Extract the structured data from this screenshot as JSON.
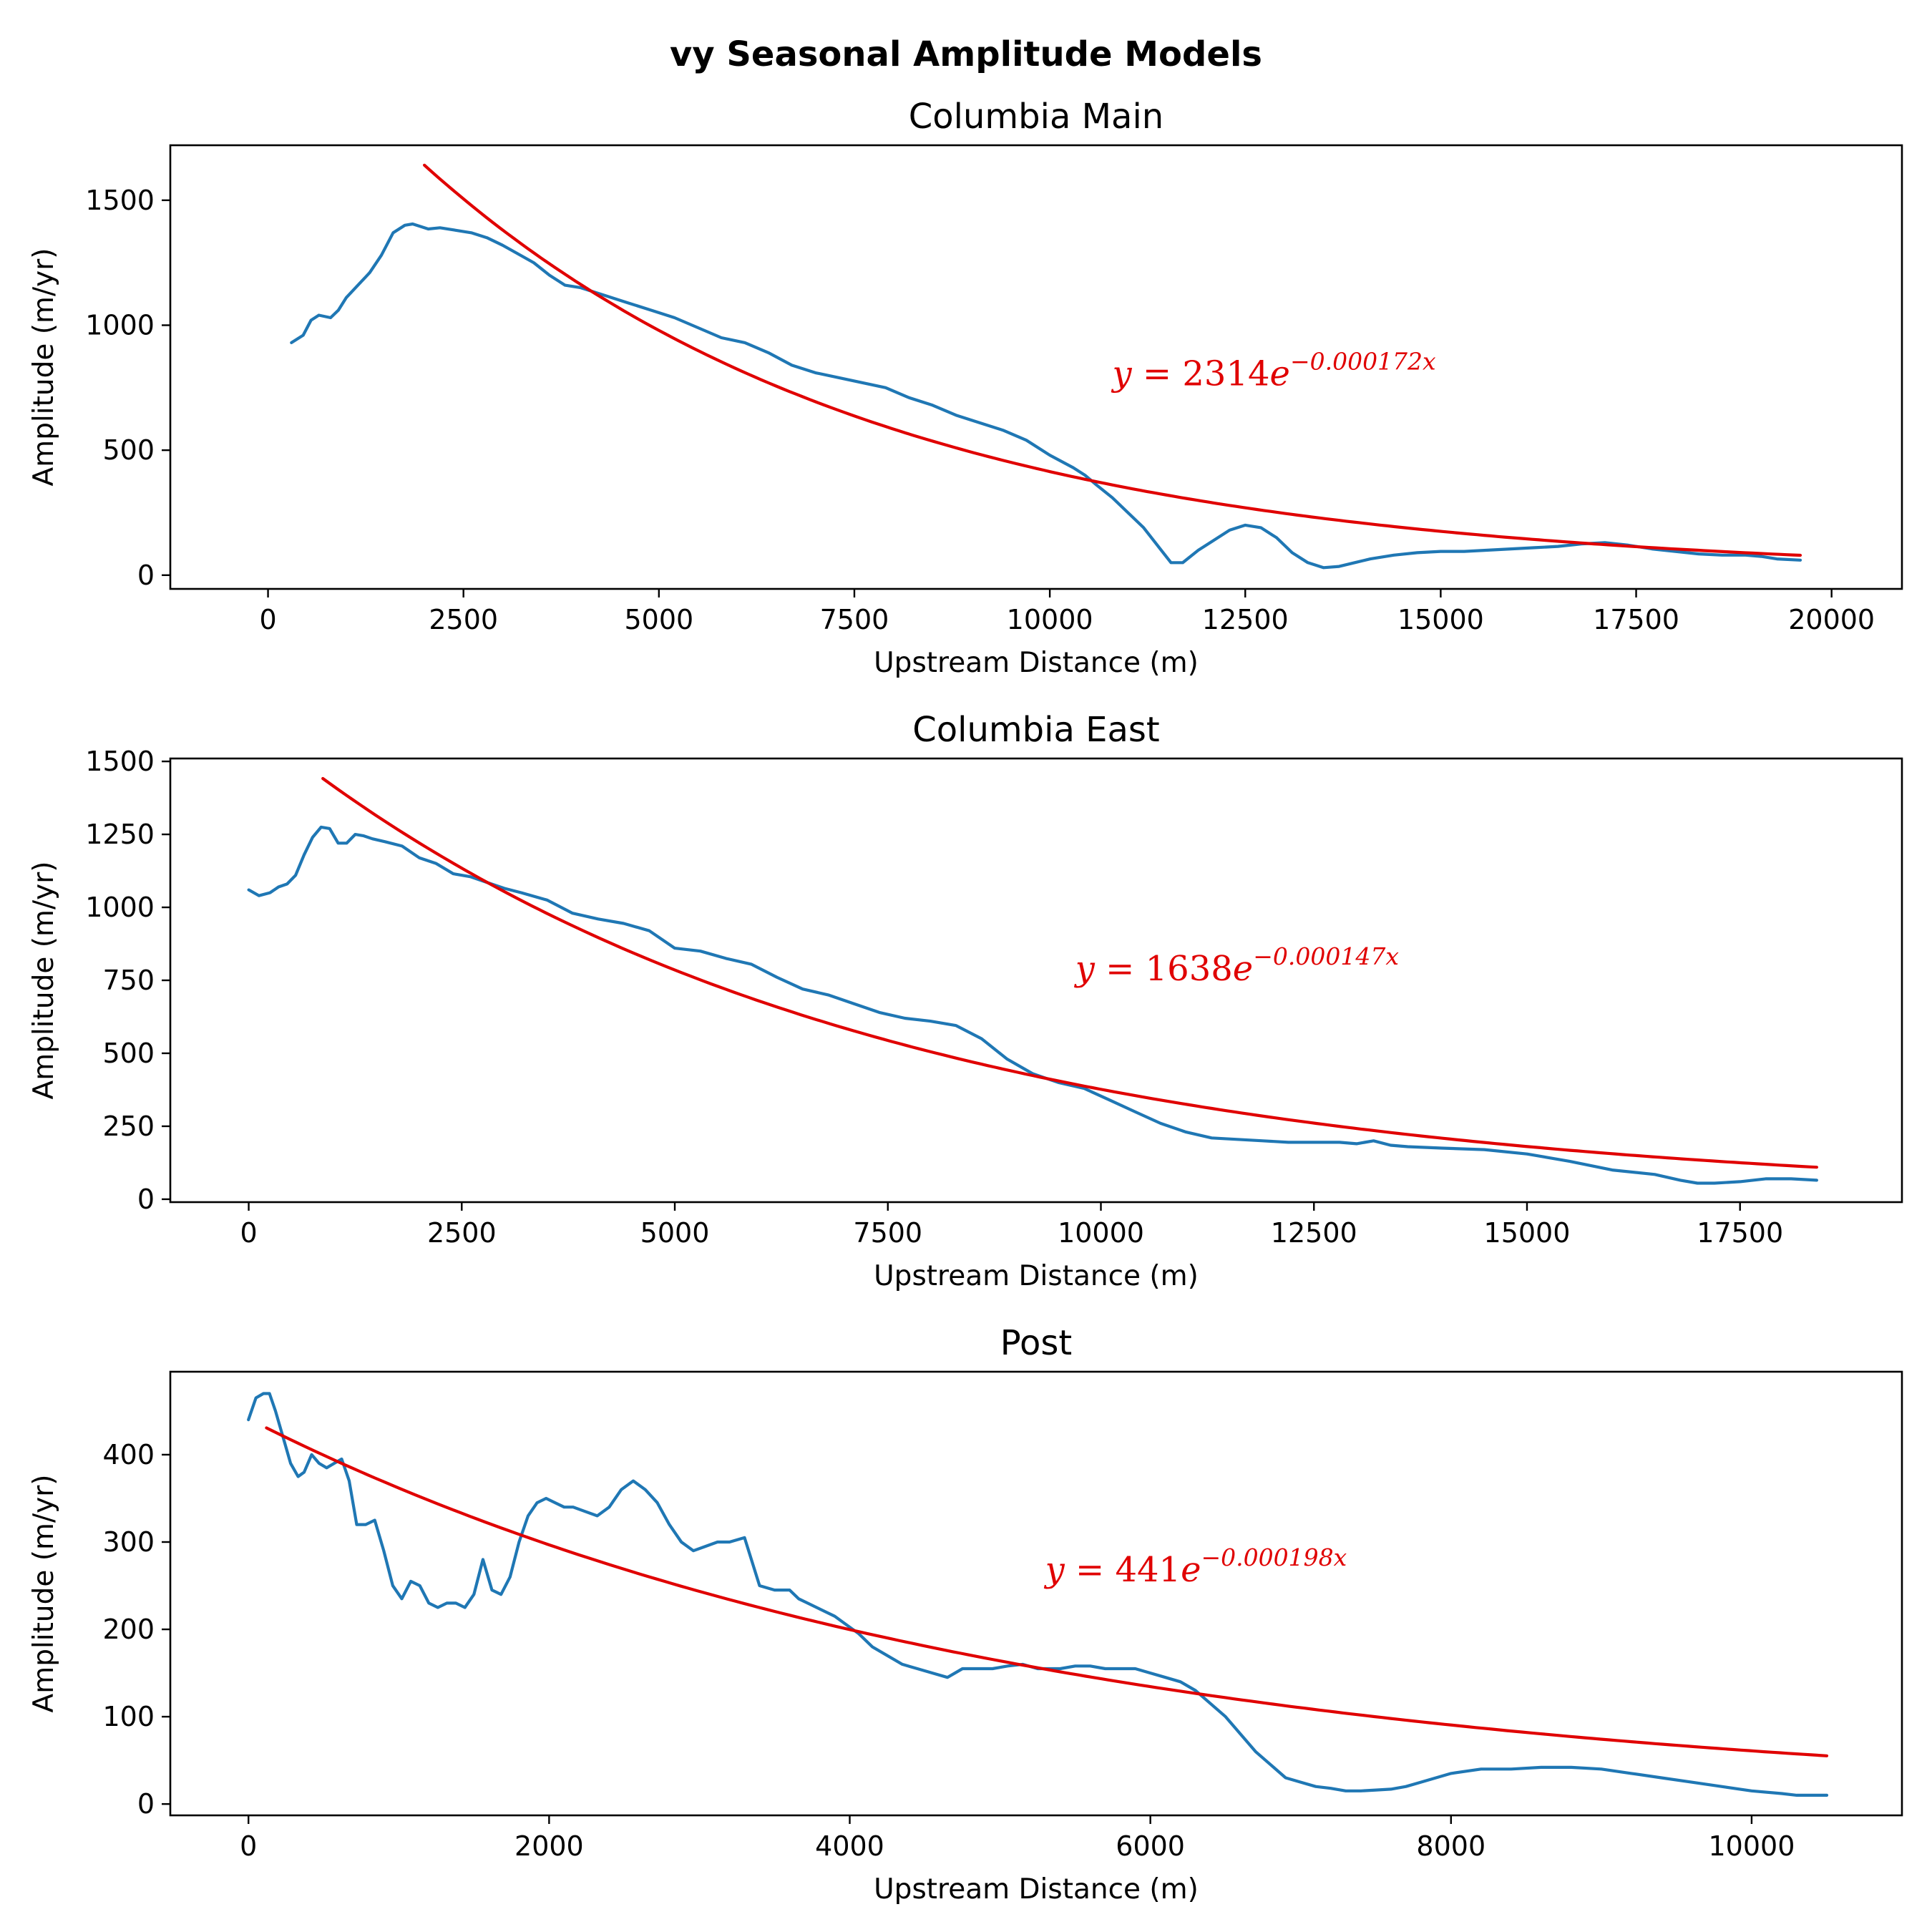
{
  "suptitle": "vy Seasonal Amplitude Models",
  "colors": {
    "observed": "#1f77b4",
    "fit": "#e00000"
  },
  "chart_data": [
    {
      "type": "line",
      "title": "Columbia Main",
      "xlabel": "Upstream Distance (m)",
      "ylabel": "Amplitude (m/yr)",
      "xlim": [
        -1250,
        20900
      ],
      "ylim": [
        -55,
        1720
      ],
      "xticks": [
        0,
        2500,
        5000,
        7500,
        10000,
        12500,
        15000,
        17500,
        20000
      ],
      "xtick_labels": [
        "0",
        "2500",
        "5000",
        "7500",
        "10000",
        "12500",
        "15000",
        "17500",
        "20000"
      ],
      "yticks": [
        0,
        500,
        1000,
        1500
      ],
      "ytick_labels": [
        "0",
        "500",
        "1000",
        "1500"
      ],
      "grid": false,
      "model": {
        "a": 2314,
        "b": 0.000172,
        "x_start": 2000,
        "x_end": 19600
      },
      "equation": {
        "lhs": "y = ",
        "coef": "2314",
        "base": "e",
        "exponent": "−0.000172x",
        "x": 10800,
        "y": 760
      },
      "series": [
        {
          "role": "observed",
          "x": [
            300,
            450,
            550,
            650,
            800,
            900,
            1000,
            1150,
            1300,
            1450,
            1600,
            1750,
            1850,
            1950,
            2050,
            2200,
            2400,
            2600,
            2800,
            3000,
            3200,
            3400,
            3600,
            3800,
            4000,
            4300,
            4600,
            4900,
            5200,
            5500,
            5800,
            6100,
            6400,
            6700,
            7000,
            7300,
            7600,
            7900,
            8200,
            8500,
            8800,
            9100,
            9400,
            9700,
            10000,
            10300,
            10450,
            10600,
            10800,
            11000,
            11200,
            11400,
            11550,
            11700,
            11900,
            12100,
            12300,
            12500,
            12700,
            12900,
            13100,
            13300,
            13500,
            13700,
            13900,
            14100,
            14400,
            14700,
            15000,
            15300,
            15600,
            15900,
            16200,
            16500,
            16800,
            17100,
            17400,
            17700,
            18000,
            18300,
            18600,
            18900,
            19100,
            19300,
            19600
          ],
          "y": [
            930,
            960,
            1020,
            1040,
            1030,
            1060,
            1110,
            1160,
            1210,
            1280,
            1370,
            1400,
            1405,
            1395,
            1385,
            1390,
            1380,
            1370,
            1350,
            1320,
            1285,
            1250,
            1200,
            1160,
            1150,
            1120,
            1090,
            1060,
            1030,
            990,
            950,
            930,
            890,
            840,
            810,
            790,
            770,
            750,
            710,
            680,
            640,
            610,
            580,
            540,
            480,
            430,
            400,
            360,
            310,
            250,
            190,
            110,
            50,
            50,
            100,
            140,
            180,
            200,
            190,
            150,
            90,
            50,
            30,
            35,
            50,
            65,
            80,
            90,
            95,
            95,
            100,
            105,
            110,
            115,
            125,
            130,
            120,
            105,
            95,
            85,
            80,
            80,
            75,
            65,
            60
          ]
        }
      ]
    },
    {
      "type": "line",
      "title": "Columbia East",
      "xlabel": "Upstream Distance (m)",
      "ylabel": "Amplitude (m/yr)",
      "xlim": [
        -920,
        19400
      ],
      "ylim": [
        -10,
        1510
      ],
      "xticks": [
        0,
        2500,
        5000,
        7500,
        10000,
        12500,
        15000,
        17500
      ],
      "xtick_labels": [
        "0",
        "2500",
        "5000",
        "7500",
        "10000",
        "12500",
        "15000",
        "17500"
      ],
      "yticks": [
        0,
        250,
        500,
        750,
        1000,
        1250,
        1500
      ],
      "ytick_labels": [
        "0",
        "250",
        "500",
        "750",
        "1000",
        "1250",
        "1500"
      ],
      "grid": false,
      "model": {
        "a": 1638,
        "b": 0.000147,
        "x_start": 870,
        "x_end": 18400
      },
      "equation": {
        "lhs": "y = ",
        "coef": "1638",
        "base": "e",
        "exponent": "−0.000147x",
        "x": 9700,
        "y": 750
      },
      "series": [
        {
          "role": "observed",
          "x": [
            0,
            120,
            250,
            350,
            450,
            550,
            650,
            750,
            850,
            950,
            1050,
            1150,
            1250,
            1350,
            1450,
            1600,
            1800,
            2000,
            2200,
            2400,
            2600,
            2800,
            3000,
            3200,
            3500,
            3800,
            4100,
            4400,
            4700,
            5000,
            5300,
            5600,
            5900,
            6200,
            6500,
            6800,
            7100,
            7400,
            7700,
            8000,
            8300,
            8600,
            8900,
            9200,
            9500,
            9800,
            10100,
            10400,
            10700,
            11000,
            11300,
            11600,
            11900,
            12200,
            12500,
            12800,
            13000,
            13200,
            13400,
            13600,
            14000,
            14500,
            15000,
            15500,
            16000,
            16500,
            16800,
            17000,
            17200,
            17500,
            17800,
            18100,
            18400
          ],
          "y": [
            1060,
            1040,
            1050,
            1070,
            1080,
            1110,
            1180,
            1240,
            1275,
            1270,
            1220,
            1220,
            1250,
            1245,
            1235,
            1225,
            1210,
            1170,
            1150,
            1115,
            1105,
            1085,
            1065,
            1050,
            1025,
            980,
            960,
            945,
            920,
            860,
            850,
            825,
            805,
            760,
            720,
            700,
            670,
            640,
            620,
            610,
            595,
            550,
            480,
            430,
            400,
            380,
            340,
            300,
            260,
            230,
            210,
            205,
            200,
            195,
            195,
            195,
            190,
            200,
            185,
            180,
            175,
            170,
            155,
            130,
            100,
            85,
            65,
            55,
            55,
            60,
            70,
            70,
            65
          ]
        }
      ]
    },
    {
      "type": "line",
      "title": "Post",
      "xlabel": "Upstream Distance (m)",
      "ylabel": "Amplitude (m/yr)",
      "xlim": [
        -520,
        11000
      ],
      "ylim": [
        -13,
        495
      ],
      "xticks": [
        0,
        2000,
        4000,
        6000,
        8000,
        10000
      ],
      "xtick_labels": [
        "0",
        "2000",
        "4000",
        "6000",
        "8000",
        "10000"
      ],
      "yticks": [
        0,
        100,
        200,
        300,
        400
      ],
      "ytick_labels": [
        "0",
        "100",
        "200",
        "300",
        "400"
      ],
      "grid": false,
      "model": {
        "a": 441,
        "b": 0.000198,
        "x_start": 120,
        "x_end": 10500
      },
      "equation": {
        "lhs": "y = ",
        "coef": "441",
        "base": "e",
        "exponent": "−0.000198x",
        "x": 5300,
        "y": 255
      },
      "series": [
        {
          "role": "observed",
          "x": [
            0,
            50,
            100,
            140,
            180,
            230,
            280,
            330,
            370,
            420,
            470,
            520,
            570,
            620,
            670,
            720,
            780,
            840,
            900,
            960,
            1020,
            1080,
            1140,
            1200,
            1260,
            1320,
            1380,
            1440,
            1500,
            1560,
            1620,
            1680,
            1740,
            1800,
            1860,
            1920,
            1980,
            2040,
            2100,
            2160,
            2240,
            2320,
            2400,
            2480,
            2560,
            2640,
            2720,
            2800,
            2880,
            2960,
            3040,
            3120,
            3200,
            3300,
            3400,
            3500,
            3600,
            3660,
            3720,
            3780,
            3840,
            3900,
            3980,
            4060,
            4150,
            4250,
            4350,
            4450,
            4550,
            4650,
            4750,
            4850,
            4950,
            5050,
            5150,
            5250,
            5320,
            5400,
            5500,
            5600,
            5700,
            5800,
            5900,
            6000,
            6100,
            6200,
            6300,
            6400,
            6500,
            6600,
            6700,
            6800,
            6900,
            7000,
            7100,
            7200,
            7300,
            7400,
            7500,
            7600,
            7700,
            7800,
            7900,
            8000,
            8200,
            8400,
            8600,
            8800,
            9000,
            9200,
            9400,
            9600,
            9800,
            10000,
            10200,
            10300,
            10500
          ],
          "y": [
            440,
            465,
            470,
            470,
            450,
            420,
            390,
            375,
            380,
            400,
            390,
            385,
            390,
            395,
            370,
            320,
            320,
            325,
            290,
            250,
            235,
            255,
            250,
            230,
            225,
            230,
            230,
            225,
            240,
            280,
            245,
            240,
            260,
            300,
            330,
            345,
            350,
            345,
            340,
            340,
            335,
            330,
            340,
            360,
            370,
            360,
            345,
            320,
            300,
            290,
            295,
            300,
            300,
            305,
            250,
            245,
            245,
            235,
            230,
            225,
            220,
            215,
            205,
            195,
            180,
            170,
            160,
            155,
            150,
            145,
            155,
            155,
            155,
            158,
            160,
            155,
            155,
            155,
            158,
            158,
            155,
            155,
            155,
            150,
            145,
            140,
            130,
            115,
            100,
            80,
            60,
            45,
            30,
            25,
            20,
            18,
            15,
            15,
            16,
            17,
            20,
            25,
            30,
            35,
            40,
            40,
            42,
            42,
            40,
            35,
            30,
            25,
            20,
            15,
            12,
            10,
            10
          ]
        }
      ]
    }
  ]
}
